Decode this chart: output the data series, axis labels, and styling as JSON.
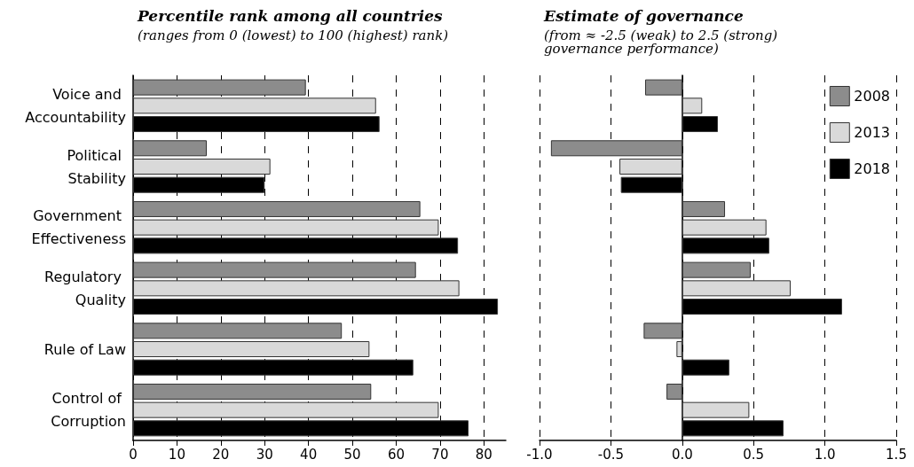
{
  "chart_data": [
    {
      "type": "bar",
      "orientation": "horizontal",
      "title": "Percentile rank among all countries",
      "subtitle": "(ranges from 0 (lowest) to 100 (highest) rank)",
      "categories": [
        "Voice and Accountability",
        "Political Stability",
        "Government Effectiveness",
        "Regulatory Quality",
        "Rule of Law",
        "Control of Corruption"
      ],
      "series": [
        {
          "color": "#8c8c8c",
          "values": [
            39.4,
            16.8,
            65.5,
            64.5,
            47.6,
            54.3
          ]
        },
        {
          "color": "#d9d9d9",
          "values": [
            55.4,
            31.3,
            69.7,
            74.4,
            53.9,
            69.7
          ]
        },
        {
          "color": "#000000",
          "values": [
            56.2,
            30.0,
            74.1,
            83.2,
            63.9,
            76.5
          ]
        }
      ],
      "xlim": [
        0,
        85
      ],
      "xticks": [
        0,
        10,
        20,
        30,
        40,
        50,
        60,
        70,
        80
      ],
      "grid": "x",
      "legend": false
    },
    {
      "type": "bar",
      "orientation": "horizontal",
      "title": "Estimate of governance",
      "subtitle": "(from ≈ -2.5 (weak) to 2.5 (strong) governance performance)",
      "categories": [
        "Voice and Accountability",
        "Political Stability",
        "Government Effectiveness",
        "Regulatory Quality",
        "Rule of Law",
        "Control of Corruption"
      ],
      "series": [
        {
          "name": "2008",
          "color": "#8c8c8c",
          "values": [
            -0.26,
            -0.92,
            0.3,
            0.48,
            -0.27,
            -0.11
          ]
        },
        {
          "name": "2013",
          "color": "#d9d9d9",
          "values": [
            0.14,
            -0.44,
            0.59,
            0.76,
            -0.04,
            0.47
          ]
        },
        {
          "name": "2018",
          "color": "#000000",
          "values": [
            0.25,
            -0.43,
            0.61,
            1.12,
            0.33,
            0.71
          ]
        }
      ],
      "xlim": [
        -1,
        1.5
      ],
      "xticks": [
        {
          "value": -1,
          "label": "-1.0"
        },
        -0.5,
        {
          "value": 0,
          "label": "0.0"
        },
        0.5,
        {
          "value": 1,
          "label": "1.0"
        },
        1.5
      ],
      "grid": "x",
      "legend": "top right",
      "tick_labels": "x"
    }
  ]
}
